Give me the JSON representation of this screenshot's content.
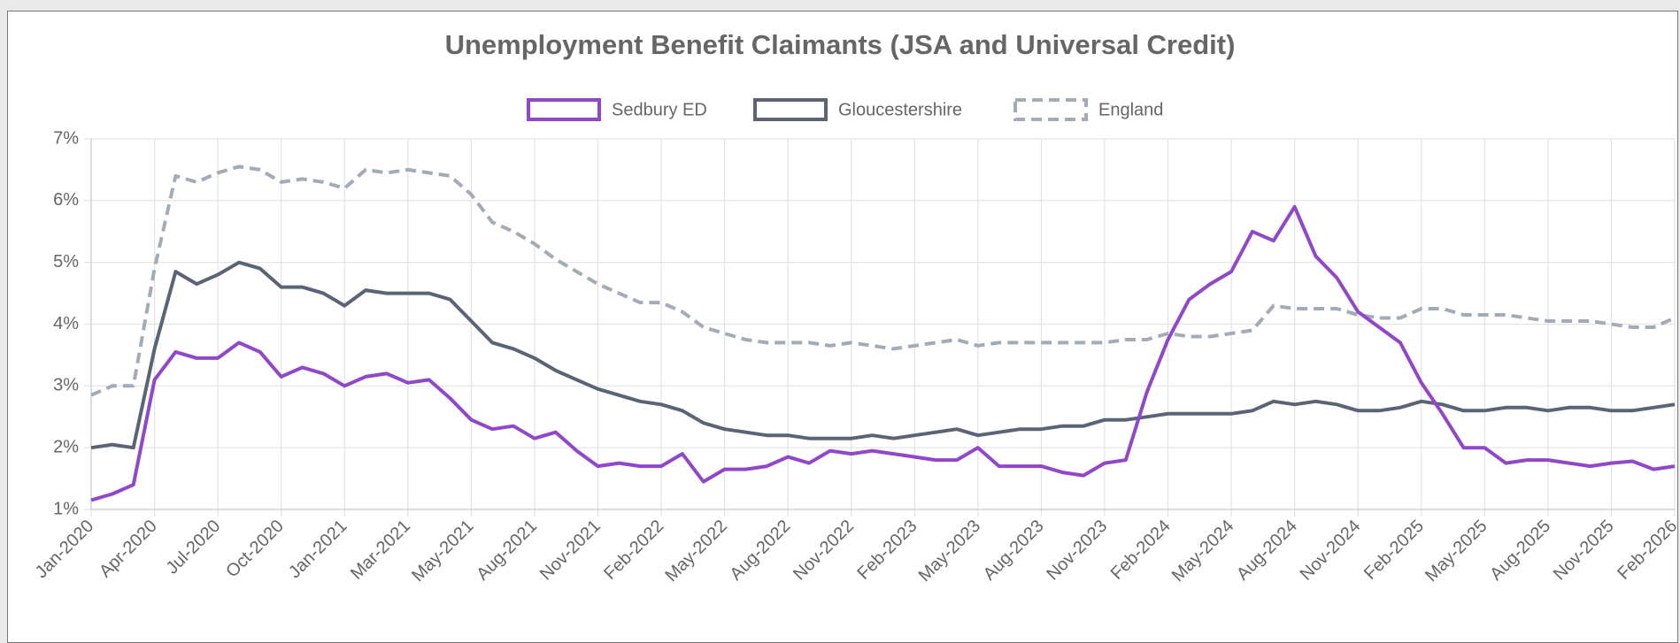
{
  "chart_data": {
    "type": "line",
    "title": "Unemployment Benefit Claimants (JSA and Universal Credit)",
    "categories": [
      "Jan-2020",
      null,
      null,
      "Apr-2020",
      null,
      null,
      "Jul-2020",
      null,
      null,
      "Oct-2020",
      null,
      null,
      "Jan-2021",
      null,
      null,
      "Mar-2021",
      null,
      null,
      "May-2021",
      null,
      null,
      "Aug-2021",
      null,
      null,
      "Nov-2021",
      null,
      null,
      "Feb-2022",
      null,
      null,
      "May-2022",
      null,
      null,
      "Aug-2022",
      null,
      null,
      "Nov-2022",
      null,
      null,
      "Feb-2023",
      null,
      null,
      "May-2023",
      null,
      null,
      "Aug-2023",
      null,
      null,
      "Nov-2023",
      null,
      null,
      "Feb-2024",
      null,
      null,
      "May-2024",
      null,
      null,
      "Aug-2024",
      null,
      null,
      "Nov-2024",
      null,
      null,
      "Feb-2025",
      null,
      null,
      "May-2025",
      null,
      null,
      "Aug-2025",
      null,
      null,
      "Nov-2025",
      null,
      null,
      "Feb-2026"
    ],
    "series": [
      {
        "name": "Sedbury ED",
        "color": "#9147c9",
        "dashed": false,
        "values": [
          1.15,
          1.25,
          1.4,
          3.1,
          3.55,
          3.45,
          3.45,
          3.7,
          3.55,
          3.15,
          3.3,
          3.2,
          3.0,
          3.15,
          3.2,
          3.05,
          3.1,
          2.8,
          2.45,
          2.3,
          2.35,
          2.15,
          2.25,
          1.95,
          1.7,
          1.75,
          1.7,
          1.7,
          1.9,
          1.45,
          1.65,
          1.65,
          1.7,
          1.85,
          1.75,
          1.95,
          1.9,
          1.95,
          1.9,
          1.85,
          1.8,
          1.8,
          2.0,
          1.7,
          1.7,
          1.7,
          1.6,
          1.55,
          1.75,
          1.8,
          2.9,
          3.75,
          4.4,
          4.65,
          4.85,
          5.5,
          5.35,
          5.9,
          5.1,
          4.75,
          4.2,
          3.95,
          3.7,
          3.05,
          2.55,
          2.0,
          2.0,
          1.75,
          1.8,
          1.8,
          1.75,
          1.7,
          1.75,
          1.78,
          1.65,
          1.7
        ]
      },
      {
        "name": "Gloucestershire",
        "color": "#5b6476",
        "dashed": false,
        "values": [
          2.0,
          2.05,
          2.0,
          3.6,
          4.85,
          4.65,
          4.8,
          5.0,
          4.9,
          4.6,
          4.6,
          4.5,
          4.3,
          4.55,
          4.5,
          4.5,
          4.5,
          4.4,
          4.05,
          3.7,
          3.6,
          3.45,
          3.25,
          3.1,
          2.95,
          2.85,
          2.75,
          2.7,
          2.6,
          2.4,
          2.3,
          2.25,
          2.2,
          2.2,
          2.15,
          2.15,
          2.15,
          2.2,
          2.15,
          2.2,
          2.25,
          2.3,
          2.2,
          2.25,
          2.3,
          2.3,
          2.35,
          2.35,
          2.45,
          2.45,
          2.5,
          2.55,
          2.55,
          2.55,
          2.55,
          2.6,
          2.75,
          2.7,
          2.75,
          2.7,
          2.6,
          2.6,
          2.65,
          2.75,
          2.7,
          2.6,
          2.6,
          2.65,
          2.65,
          2.6,
          2.65,
          2.65,
          2.6,
          2.6,
          2.65,
          2.7
        ]
      },
      {
        "name": "England",
        "color": "#a3abb8",
        "dashed": true,
        "values": [
          2.85,
          3.0,
          3.0,
          4.9,
          6.4,
          6.3,
          6.45,
          6.55,
          6.5,
          6.3,
          6.35,
          6.3,
          6.2,
          6.5,
          6.45,
          6.5,
          6.45,
          6.4,
          6.1,
          5.65,
          5.5,
          5.3,
          5.05,
          4.85,
          4.65,
          4.5,
          4.35,
          4.35,
          4.2,
          3.95,
          3.85,
          3.75,
          3.7,
          3.7,
          3.7,
          3.65,
          3.7,
          3.65,
          3.6,
          3.65,
          3.7,
          3.75,
          3.65,
          3.7,
          3.7,
          3.7,
          3.7,
          3.7,
          3.7,
          3.75,
          3.75,
          3.85,
          3.8,
          3.8,
          3.85,
          3.9,
          4.3,
          4.25,
          4.25,
          4.25,
          4.15,
          4.1,
          4.1,
          4.25,
          4.25,
          4.15,
          4.15,
          4.15,
          4.1,
          4.05,
          4.05,
          4.05,
          4.0,
          3.95,
          3.95,
          4.1
        ]
      }
    ],
    "ylim": [
      1,
      7
    ],
    "yticks": [
      {
        "value": 1,
        "label": "1%"
      },
      {
        "value": 2,
        "label": "2%"
      },
      {
        "value": 3,
        "label": "3%"
      },
      {
        "value": 4,
        "label": "4%"
      },
      {
        "value": 5,
        "label": "5%"
      },
      {
        "value": 6,
        "label": "6%"
      },
      {
        "value": 7,
        "label": "7%"
      }
    ],
    "grid": true,
    "legend": "top"
  }
}
